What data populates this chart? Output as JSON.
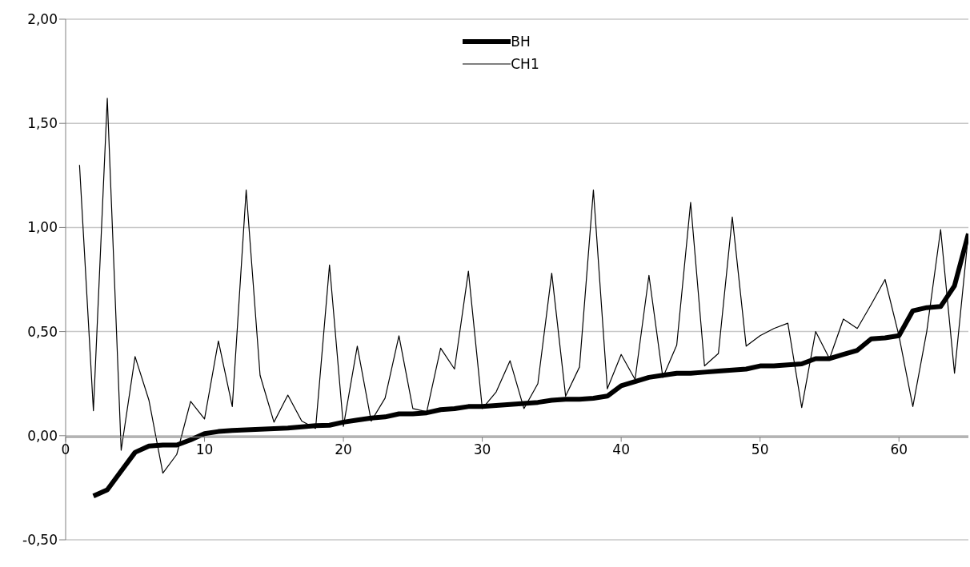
{
  "chart_data": {
    "type": "line",
    "x": [
      1,
      2,
      3,
      4,
      5,
      6,
      7,
      8,
      9,
      10,
      11,
      12,
      13,
      14,
      15,
      16,
      17,
      18,
      19,
      20,
      21,
      22,
      23,
      24,
      25,
      26,
      27,
      28,
      29,
      30,
      31,
      32,
      33,
      34,
      35,
      36,
      37,
      38,
      39,
      40,
      41,
      42,
      43,
      44,
      45,
      46,
      47,
      48,
      49,
      50,
      51,
      52,
      53,
      54,
      55,
      56,
      57,
      58,
      59,
      60,
      61,
      62,
      63,
      64,
      65
    ],
    "series": [
      {
        "name": "BH",
        "color": "#000000",
        "values": [
          null,
          -0.29,
          -0.26,
          -0.17,
          -0.08,
          -0.05,
          -0.045,
          -0.045,
          -0.02,
          0.01,
          0.02,
          0.025,
          0.028,
          0.031,
          0.034,
          0.037,
          0.042,
          0.048,
          0.05,
          0.065,
          0.075,
          0.085,
          0.09,
          0.105,
          0.105,
          0.11,
          0.125,
          0.13,
          0.14,
          0.14,
          0.145,
          0.15,
          0.155,
          0.16,
          0.17,
          0.175,
          0.175,
          0.18,
          0.19,
          0.24,
          0.26,
          0.28,
          0.29,
          0.3,
          0.3,
          0.305,
          0.31,
          0.315,
          0.32,
          0.335,
          0.335,
          0.34,
          0.345,
          0.37,
          0.37,
          0.39,
          0.41,
          0.465,
          0.47,
          0.48,
          0.6,
          0.615,
          0.62,
          0.72,
          0.97
        ]
      },
      {
        "name": "CH1",
        "color": "#000000",
        "values": [
          1.3,
          0.12,
          1.62,
          -0.07,
          0.38,
          0.17,
          -0.18,
          -0.09,
          0.165,
          0.08,
          0.455,
          0.14,
          1.18,
          0.29,
          0.065,
          0.195,
          0.07,
          0.035,
          0.82,
          0.045,
          0.43,
          0.07,
          0.18,
          0.48,
          0.13,
          0.115,
          0.42,
          0.32,
          0.79,
          0.13,
          0.21,
          0.36,
          0.13,
          0.25,
          0.78,
          0.19,
          0.33,
          1.18,
          0.225,
          0.39,
          0.27,
          0.77,
          0.28,
          0.435,
          1.12,
          0.335,
          0.395,
          1.05,
          0.43,
          0.48,
          0.515,
          0.54,
          0.135,
          0.5,
          0.37,
          0.56,
          0.515,
          0.63,
          0.75,
          0.48,
          0.14,
          0.5,
          0.99,
          0.3,
          0.97
        ]
      }
    ],
    "xlim": [
      0,
      65
    ],
    "xticks": [
      0,
      10,
      20,
      30,
      40,
      50,
      60
    ],
    "ylim": [
      -0.5,
      2
    ],
    "yticks": [
      {
        "value": -0.5,
        "label": "-0,50"
      },
      {
        "value": 0,
        "label": "0,00"
      },
      {
        "value": 0.5,
        "label": "0,50"
      },
      {
        "value": 1,
        "label": "1,00"
      },
      {
        "value": 1.5,
        "label": "1,50"
      },
      {
        "value": 2,
        "label": "2,00"
      }
    ],
    "grid": "y",
    "legend": "top",
    "marker": "none",
    "line_style": "solid"
  }
}
